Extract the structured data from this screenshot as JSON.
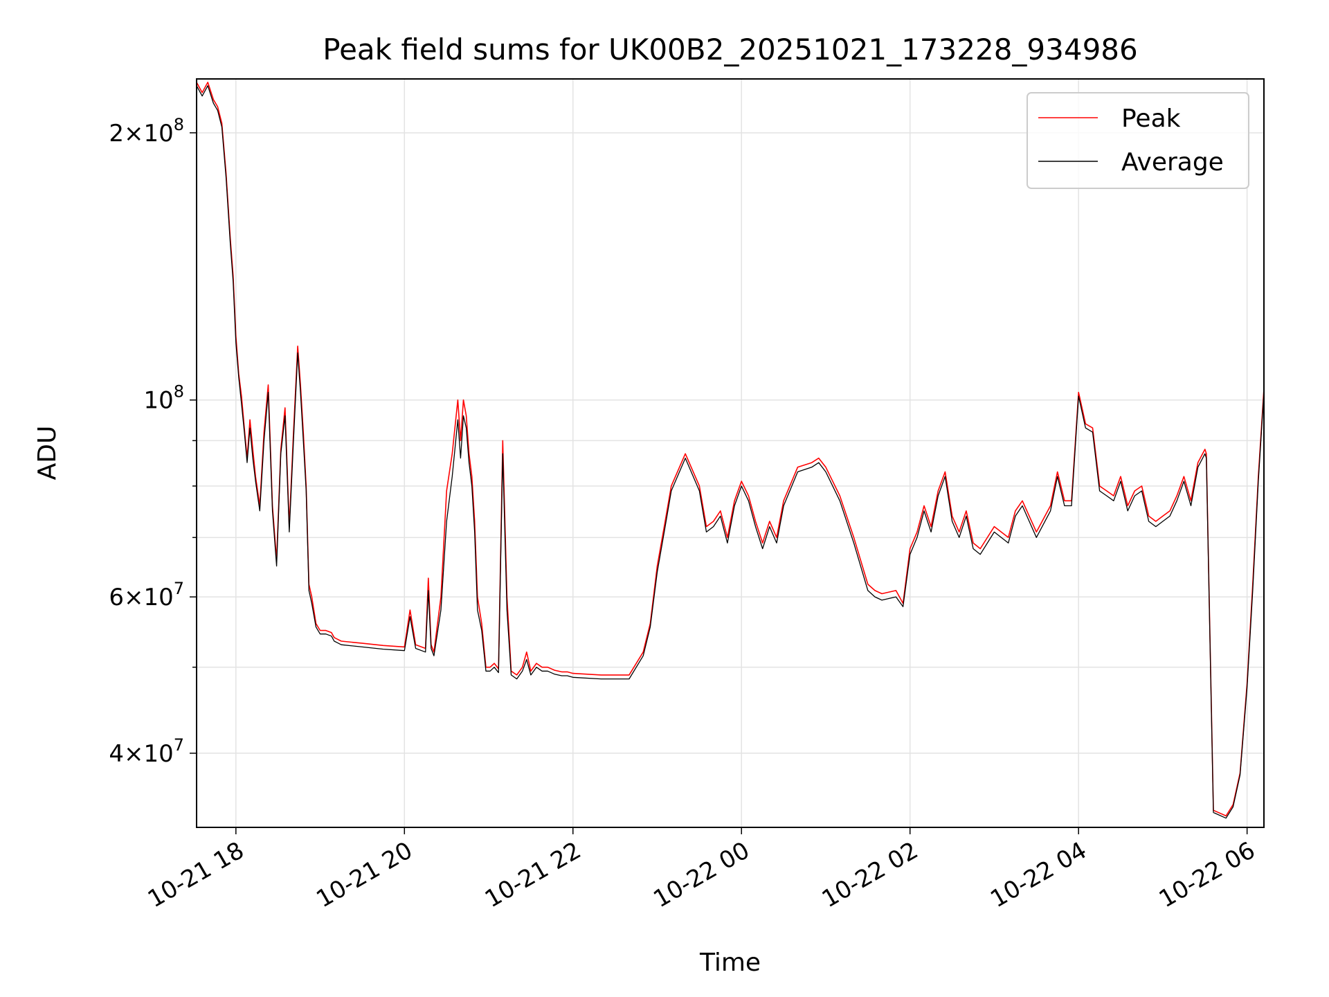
{
  "chart_data": {
    "type": "line",
    "title": "Peak field sums for UK00B2_20251021_173228_934986",
    "xlabel": "Time",
    "ylabel": "ADU",
    "x_unit": "time of day (10-21 17:32 to 10-22 06:12)",
    "xlim": [
      "10-21 17:32",
      "10-22 06:12"
    ],
    "ylim": [
      33000000,
      230000000
    ],
    "yscale": "log",
    "grid": true,
    "legend": {
      "placement": "top-right",
      "entries": [
        "Peak",
        "Average"
      ]
    },
    "x_ticks": [
      "10-21 18",
      "10-21 20",
      "10-21 22",
      "10-22 00",
      "10-22 02",
      "10-22 04",
      "10-22 06"
    ],
    "y_ticks": [
      {
        "value": 40000000,
        "mantissa": "4",
        "exponent": "7"
      },
      {
        "value": 60000000,
        "mantissa": "6",
        "exponent": "7"
      },
      {
        "value": 100000000,
        "mantissa": "",
        "exponent": "8",
        "base": "10"
      },
      {
        "value": 200000000,
        "mantissa": "2",
        "exponent": "8"
      }
    ],
    "y_minor_ticks": [
      50000000,
      70000000,
      80000000,
      90000000
    ],
    "times": [
      "10-21 17:32",
      "10-21 17:36",
      "10-21 17:40",
      "10-21 17:44",
      "10-21 17:47",
      "10-21 17:50",
      "10-21 17:53",
      "10-21 17:56",
      "10-21 17:58",
      "10-21 18:00",
      "10-21 18:02",
      "10-21 18:04",
      "10-21 18:06",
      "10-21 18:08",
      "10-21 18:10",
      "10-21 18:12",
      "10-21 18:14",
      "10-21 18:17",
      "10-21 18:20",
      "10-21 18:23",
      "10-21 18:26",
      "10-21 18:29",
      "10-21 18:32",
      "10-21 18:35",
      "10-21 18:38",
      "10-21 18:41",
      "10-21 18:44",
      "10-21 18:46",
      "10-21 18:48",
      "10-21 18:50",
      "10-21 18:52",
      "10-21 18:54",
      "10-21 18:57",
      "10-21 19:00",
      "10-21 19:04",
      "10-21 19:08",
      "10-21 19:10",
      "10-21 19:12",
      "10-21 19:15",
      "10-21 19:30",
      "10-21 19:45",
      "10-21 20:00",
      "10-21 20:04",
      "10-21 20:08",
      "10-21 20:15",
      "10-21 20:17",
      "10-21 20:19",
      "10-21 20:21",
      "10-21 20:26",
      "10-21 20:30",
      "10-21 20:34",
      "10-21 20:38",
      "10-21 20:40",
      "10-21 20:42",
      "10-21 20:44",
      "10-21 20:46",
      "10-21 20:48",
      "10-21 20:50",
      "10-21 20:52",
      "10-21 20:55",
      "10-21 20:58",
      "10-21 21:01",
      "10-21 21:04",
      "10-21 21:07",
      "10-21 21:10",
      "10-21 21:13",
      "10-21 21:16",
      "10-21 21:20",
      "10-21 21:24",
      "10-21 21:27",
      "10-21 21:30",
      "10-21 21:34",
      "10-21 21:38",
      "10-21 21:42",
      "10-21 21:47",
      "10-21 21:52",
      "10-21 21:56",
      "10-21 22:00",
      "10-21 22:20",
      "10-21 22:40",
      "10-21 22:50",
      "10-21 22:55",
      "10-21 23:00",
      "10-21 23:05",
      "10-21 23:10",
      "10-21 23:20",
      "10-21 23:30",
      "10-21 23:35",
      "10-21 23:40",
      "10-21 23:45",
      "10-21 23:50",
      "10-21 23:55",
      "10-22 00:00",
      "10-22 00:05",
      "10-22 00:10",
      "10-22 00:15",
      "10-22 00:20",
      "10-22 00:25",
      "10-22 00:30",
      "10-22 00:40",
      "10-22 00:50",
      "10-22 00:55",
      "10-22 01:00",
      "10-22 01:10",
      "10-22 01:20",
      "10-22 01:30",
      "10-22 01:35",
      "10-22 01:40",
      "10-22 01:50",
      "10-22 01:55",
      "10-22 02:00",
      "10-22 02:05",
      "10-22 02:10",
      "10-22 02:15",
      "10-22 02:20",
      "10-22 02:25",
      "10-22 02:30",
      "10-22 02:35",
      "10-22 02:40",
      "10-22 02:45",
      "10-22 02:50",
      "10-22 03:00",
      "10-22 03:10",
      "10-22 03:15",
      "10-22 03:20",
      "10-22 03:30",
      "10-22 03:40",
      "10-22 03:45",
      "10-22 03:50",
      "10-22 03:55",
      "10-22 04:00",
      "10-22 04:05",
      "10-22 04:10",
      "10-22 04:15",
      "10-22 04:20",
      "10-22 04:25",
      "10-22 04:30",
      "10-22 04:35",
      "10-22 04:40",
      "10-22 04:45",
      "10-22 04:50",
      "10-22 04:55",
      "10-22 05:00",
      "10-22 05:05",
      "10-22 05:10",
      "10-22 05:15",
      "10-22 05:20",
      "10-22 05:25",
      "10-22 05:30",
      "10-22 05:31",
      "10-22 05:36",
      "10-22 05:45",
      "10-22 05:50",
      "10-22 05:55",
      "10-22 06:00",
      "10-22 06:04",
      "10-22 06:08",
      "10-22 06:12"
    ],
    "series": [
      {
        "name": "Peak",
        "color": "#ff0000",
        "values": [
          228,
          222,
          228,
          218,
          214,
          205,
          180,
          152,
          138,
          118,
          107,
          101,
          93,
          86,
          95,
          88,
          82,
          76,
          92,
          104,
          76,
          66,
          88,
          98,
          72,
          92,
          115,
          104,
          92,
          80,
          62,
          60,
          56,
          55,
          55,
          54.7,
          54,
          53.8,
          53.5,
          53.2,
          52.9,
          52.7,
          58,
          53,
          52.5,
          63,
          53,
          52,
          60,
          79,
          87,
          100,
          90,
          100,
          96,
          87,
          82,
          73,
          60,
          56,
          50,
          50,
          50.5,
          49.8,
          90,
          60,
          49.5,
          49,
          50,
          52,
          49.5,
          50.5,
          50,
          50,
          49.6,
          49.4,
          49.4,
          49.2,
          49,
          49,
          52,
          56,
          65,
          72,
          80,
          87,
          80,
          72,
          73,
          75,
          70,
          77,
          81,
          78,
          73,
          69,
          73,
          70,
          77,
          84,
          85,
          86,
          84,
          78,
          70,
          62,
          61,
          60.5,
          61,
          59,
          68,
          71,
          76,
          72,
          79,
          83,
          74,
          71,
          75,
          69,
          68,
          72,
          70,
          75,
          77,
          71,
          76,
          83,
          77,
          77,
          102,
          94,
          93,
          80,
          79,
          78,
          82,
          76,
          79,
          80,
          74,
          73,
          74,
          75,
          78,
          82,
          77,
          85,
          88,
          87,
          34.5,
          34,
          35,
          38,
          48,
          62,
          82,
          103
        ]
      },
      {
        "name": "Average",
        "color": "#000000",
        "values": [
          226,
          220,
          226,
          216,
          212,
          203,
          178,
          150,
          136,
          116,
          106,
          99,
          92,
          85,
          93,
          86,
          81,
          75,
          90,
          102,
          75,
          65,
          87,
          96,
          71,
          90,
          113,
          102,
          90,
          79,
          61,
          59,
          55.5,
          54.5,
          54.5,
          54.2,
          53.5,
          53.3,
          53,
          52.7,
          52.4,
          52.2,
          57,
          52.5,
          52,
          61,
          52.5,
          51.5,
          58,
          73,
          82,
          95,
          86,
          96,
          93,
          85,
          80,
          71,
          58,
          55,
          49.5,
          49.5,
          50,
          49.3,
          87,
          58,
          49,
          48.5,
          49.5,
          51,
          49,
          50,
          49.5,
          49.5,
          49.1,
          48.9,
          48.9,
          48.7,
          48.5,
          48.5,
          51.5,
          55.5,
          64,
          71,
          79,
          86,
          79,
          71,
          72,
          74,
          69,
          76,
          80,
          77,
          72,
          68,
          72,
          69,
          76,
          83,
          84,
          85,
          83,
          77,
          69,
          61,
          60,
          59.5,
          60,
          58.5,
          67,
          70,
          75,
          71,
          78,
          82,
          73,
          70,
          74,
          68,
          67,
          71,
          69,
          74,
          76,
          70,
          75,
          82,
          76,
          76,
          101,
          93,
          92,
          79,
          78,
          77,
          81,
          75,
          78,
          79,
          73,
          72,
          73,
          74,
          77,
          81,
          76,
          84,
          87,
          86,
          34.3,
          33.8,
          34.8,
          37.8,
          47.5,
          61,
          81,
          102
        ]
      }
    ],
    "value_unit": 1000000
  }
}
